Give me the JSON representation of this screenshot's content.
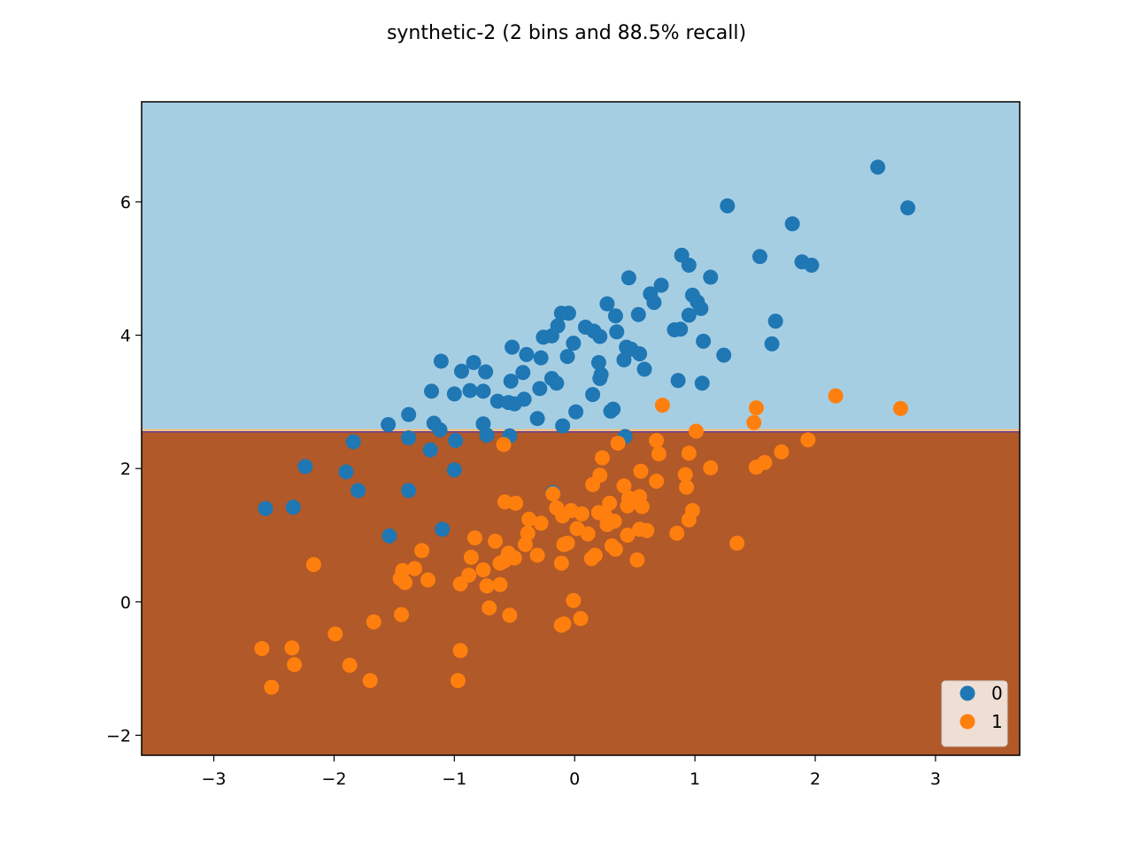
{
  "chart_data": {
    "type": "scatter",
    "title": "synthetic-2 (2 bins and 88.5% recall)",
    "xlabel": "",
    "ylabel": "",
    "xlim": [
      -3.6,
      3.7
    ],
    "ylim": [
      -2.3,
      7.5
    ],
    "xticks": [
      -3,
      -2,
      -1,
      0,
      1,
      2,
      3
    ],
    "yticks": [
      -2,
      0,
      2,
      4,
      6
    ],
    "xtick_labels": [
      "−3",
      "−2",
      "−1",
      "0",
      "1",
      "2",
      "3"
    ],
    "ytick_labels": [
      "−2",
      "0",
      "2",
      "4",
      "6"
    ],
    "grid": false,
    "legend_position": "lower-right",
    "regions": [
      {
        "class": "0",
        "y_from": 2.55,
        "y_to": 7.5,
        "color": "#a6cee3"
      },
      {
        "class": "1",
        "y_from": -2.3,
        "y_to": 2.55,
        "color": "#b15928"
      }
    ],
    "boundary_y": 2.55,
    "series": [
      {
        "name": "0",
        "color": "#1f77b4",
        "points": [
          [
            2.52,
            6.52
          ],
          [
            2.77,
            5.91
          ],
          [
            1.27,
            5.94
          ],
          [
            1.81,
            5.67
          ],
          [
            1.54,
            5.18
          ],
          [
            1.89,
            5.1
          ],
          [
            1.97,
            5.05
          ],
          [
            0.89,
            5.2
          ],
          [
            0.95,
            5.05
          ],
          [
            0.45,
            4.86
          ],
          [
            1.13,
            4.87
          ],
          [
            0.72,
            4.75
          ],
          [
            0.63,
            4.62
          ],
          [
            0.66,
            4.49
          ],
          [
            0.98,
            4.6
          ],
          [
            1.02,
            4.5
          ],
          [
            1.05,
            4.4
          ],
          [
            0.95,
            4.3
          ],
          [
            0.27,
            4.47
          ],
          [
            0.34,
            4.29
          ],
          [
            0.53,
            4.31
          ],
          [
            1.67,
            4.21
          ],
          [
            -0.11,
            4.33
          ],
          [
            -0.05,
            4.33
          ],
          [
            0.09,
            4.12
          ],
          [
            0.16,
            4.06
          ],
          [
            0.21,
            3.98
          ],
          [
            0.35,
            4.05
          ],
          [
            0.83,
            4.08
          ],
          [
            0.88,
            4.09
          ],
          [
            1.07,
            3.91
          ],
          [
            1.64,
            3.87
          ],
          [
            1.24,
            3.7
          ],
          [
            -0.26,
            3.97
          ],
          [
            -0.19,
            3.99
          ],
          [
            -0.14,
            4.14
          ],
          [
            -0.01,
            3.88
          ],
          [
            -0.52,
            3.82
          ],
          [
            0.43,
            3.82
          ],
          [
            0.47,
            3.79
          ],
          [
            0.54,
            3.72
          ],
          [
            0.41,
            3.63
          ],
          [
            -0.4,
            3.71
          ],
          [
            -0.28,
            3.66
          ],
          [
            -0.06,
            3.68
          ],
          [
            0.2,
            3.59
          ],
          [
            -1.11,
            3.61
          ],
          [
            -0.84,
            3.59
          ],
          [
            -0.94,
            3.46
          ],
          [
            -0.74,
            3.45
          ],
          [
            -0.43,
            3.44
          ],
          [
            0.58,
            3.49
          ],
          [
            0.22,
            3.41
          ],
          [
            0.21,
            3.35
          ],
          [
            -0.53,
            3.31
          ],
          [
            -0.19,
            3.35
          ],
          [
            -0.15,
            3.28
          ],
          [
            0.86,
            3.32
          ],
          [
            1.06,
            3.28
          ],
          [
            -1.19,
            3.16
          ],
          [
            -1.0,
            3.12
          ],
          [
            -0.87,
            3.17
          ],
          [
            -0.76,
            3.16
          ],
          [
            -0.29,
            3.2
          ],
          [
            -0.42,
            3.04
          ],
          [
            -0.64,
            3.01
          ],
          [
            -0.5,
            2.97
          ],
          [
            0.15,
            3.11
          ],
          [
            -0.55,
            2.99
          ],
          [
            0.3,
            2.86
          ],
          [
            0.32,
            2.89
          ],
          [
            0.01,
            2.85
          ],
          [
            -0.31,
            2.75
          ],
          [
            -1.38,
            2.81
          ],
          [
            -1.17,
            2.68
          ],
          [
            -0.76,
            2.67
          ],
          [
            -1.55,
            2.66
          ],
          [
            -0.1,
            2.64
          ],
          [
            -1.12,
            2.58
          ],
          [
            -0.73,
            2.5
          ],
          [
            -0.54,
            2.49
          ],
          [
            -1.38,
            2.46
          ],
          [
            -0.99,
            2.42
          ],
          [
            0.42,
            2.48
          ],
          [
            -1.84,
            2.4
          ],
          [
            -1.2,
            2.28
          ],
          [
            -2.24,
            2.03
          ],
          [
            -1.9,
            1.95
          ],
          [
            -1.0,
            1.98
          ],
          [
            -1.8,
            1.67
          ],
          [
            -1.38,
            1.67
          ],
          [
            -0.18,
            1.64
          ],
          [
            -2.57,
            1.4
          ],
          [
            -2.34,
            1.42
          ],
          [
            -1.54,
            0.99
          ],
          [
            -1.1,
            1.09
          ]
        ]
      },
      {
        "name": "1",
        "color": "#ff7f0e",
        "points": [
          [
            2.17,
            3.09
          ],
          [
            2.71,
            2.9
          ],
          [
            1.51,
            2.91
          ],
          [
            0.73,
            2.95
          ],
          [
            1.49,
            2.69
          ],
          [
            1.01,
            2.56
          ],
          [
            0.68,
            2.42
          ],
          [
            1.94,
            2.43
          ],
          [
            0.36,
            2.38
          ],
          [
            -0.59,
            2.36
          ],
          [
            0.7,
            2.22
          ],
          [
            0.95,
            2.23
          ],
          [
            1.72,
            2.25
          ],
          [
            0.23,
            2.16
          ],
          [
            1.51,
            2.02
          ],
          [
            1.58,
            2.09
          ],
          [
            1.13,
            2.01
          ],
          [
            0.55,
            1.96
          ],
          [
            0.21,
            1.9
          ],
          [
            0.92,
            1.91
          ],
          [
            0.68,
            1.81
          ],
          [
            0.15,
            1.76
          ],
          [
            0.41,
            1.74
          ],
          [
            0.93,
            1.72
          ],
          [
            -0.18,
            1.62
          ],
          [
            0.45,
            1.56
          ],
          [
            0.54,
            1.58
          ],
          [
            0.47,
            1.52
          ],
          [
            0.29,
            1.48
          ],
          [
            0.44,
            1.44
          ],
          [
            0.56,
            1.43
          ],
          [
            -0.58,
            1.5
          ],
          [
            -0.49,
            1.48
          ],
          [
            -0.15,
            1.41
          ],
          [
            -0.03,
            1.37
          ],
          [
            0.06,
            1.32
          ],
          [
            0.2,
            1.34
          ],
          [
            0.25,
            1.3
          ],
          [
            -0.1,
            1.29
          ],
          [
            0.3,
            1.2
          ],
          [
            0.98,
            1.37
          ],
          [
            0.95,
            1.23
          ],
          [
            -0.38,
            1.24
          ],
          [
            -0.28,
            1.18
          ],
          [
            0.27,
            1.16
          ],
          [
            0.33,
            1.21
          ],
          [
            0.02,
            1.1
          ],
          [
            0.54,
            1.09
          ],
          [
            0.6,
            1.07
          ],
          [
            -0.39,
            1.03
          ],
          [
            0.11,
            1.02
          ],
          [
            0.44,
            1.0
          ],
          [
            0.85,
            1.03
          ],
          [
            -0.83,
            0.96
          ],
          [
            -0.66,
            0.91
          ],
          [
            -0.41,
            0.86
          ],
          [
            -0.09,
            0.86
          ],
          [
            -0.06,
            0.88
          ],
          [
            0.31,
            0.84
          ],
          [
            0.34,
            0.79
          ],
          [
            1.35,
            0.88
          ],
          [
            -1.27,
            0.77
          ],
          [
            -0.55,
            0.73
          ],
          [
            -0.31,
            0.7
          ],
          [
            0.17,
            0.7
          ],
          [
            0.14,
            0.65
          ],
          [
            0.52,
            0.63
          ],
          [
            -0.86,
            0.67
          ],
          [
            -0.58,
            0.62
          ],
          [
            -0.5,
            0.66
          ],
          [
            -0.62,
            0.58
          ],
          [
            -0.11,
            0.58
          ],
          [
            -2.17,
            0.56
          ],
          [
            -1.43,
            0.47
          ],
          [
            -1.33,
            0.5
          ],
          [
            -1.45,
            0.35
          ],
          [
            -1.41,
            0.29
          ],
          [
            -1.22,
            0.33
          ],
          [
            -0.88,
            0.4
          ],
          [
            -0.95,
            0.27
          ],
          [
            -0.76,
            0.48
          ],
          [
            -0.73,
            0.24
          ],
          [
            -0.62,
            0.26
          ],
          [
            -0.01,
            0.02
          ],
          [
            -0.71,
            -0.09
          ],
          [
            -0.54,
            -0.2
          ],
          [
            -1.44,
            -0.19
          ],
          [
            0.05,
            -0.25
          ],
          [
            -0.09,
            -0.33
          ],
          [
            -0.11,
            -0.35
          ],
          [
            -1.67,
            -0.3
          ],
          [
            -1.99,
            -0.48
          ],
          [
            -2.6,
            -0.7
          ],
          [
            -2.35,
            -0.69
          ],
          [
            -0.95,
            -0.73
          ],
          [
            -2.33,
            -0.94
          ],
          [
            -1.87,
            -0.95
          ],
          [
            -2.52,
            -1.28
          ],
          [
            -1.7,
            -1.18
          ],
          [
            -0.97,
            -1.18
          ]
        ]
      }
    ]
  }
}
